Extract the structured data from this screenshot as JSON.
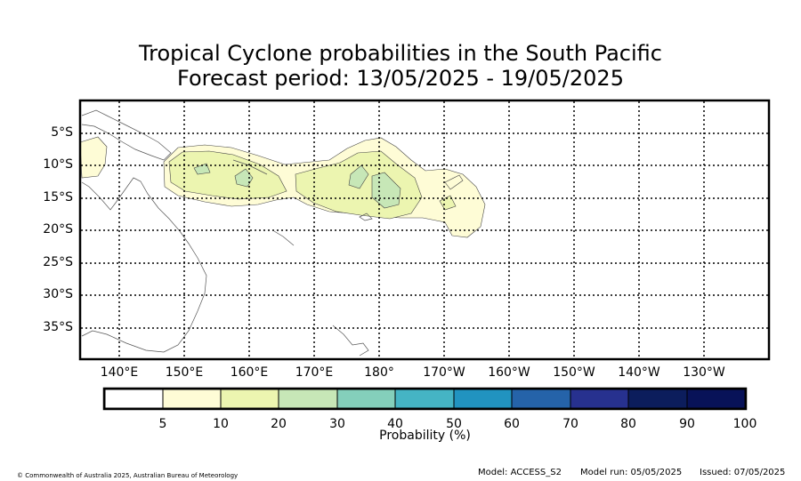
{
  "title": {
    "line1": "Tropical Cyclone probabilities in the South Pacific",
    "line2": "Forecast period: 13/05/2025 - 19/05/2025"
  },
  "map": {
    "lat_labels": [
      "5°S",
      "10°S",
      "15°S",
      "20°S",
      "25°S",
      "30°S",
      "35°S"
    ],
    "lon_labels": [
      "140°E",
      "150°E",
      "160°E",
      "170°E",
      "180°",
      "170°W",
      "160°W",
      "150°W",
      "140°W",
      "130°W"
    ],
    "grid": "dotted",
    "extent": {
      "lon": [
        134,
        236
      ],
      "lat": [
        0,
        -40
      ]
    }
  },
  "colorbar": {
    "label": "Probability (%)",
    "ticks": [
      "5",
      "10",
      "20",
      "30",
      "40",
      "50",
      "60",
      "70",
      "80",
      "90",
      "100"
    ],
    "colors": [
      "#ffffff",
      "#fefcd6",
      "#ecf5b0",
      "#c7e7b7",
      "#84cfbb",
      "#45b4c4",
      "#2193c0",
      "#2563a9",
      "#27318f",
      "#0c1d5c",
      "#081258"
    ]
  },
  "footer": {
    "copyright": "© Commonwealth of Australia 2025, Australian Bureau of Meteorology",
    "model": "Model: ACCESS_S2",
    "model_run": "Model run: 05/05/2025",
    "issued": "Issued: 07/05/2025"
  }
}
